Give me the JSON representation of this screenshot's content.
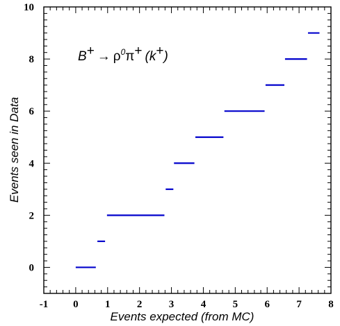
{
  "chart_data": {
    "type": "line",
    "xlabel": "Events expected (from MC)",
    "ylabel": "Events seen in Data",
    "xlim": [
      -1,
      8
    ],
    "ylim": [
      -1,
      10
    ],
    "x_ticks": [
      -1,
      0,
      1,
      2,
      3,
      4,
      5,
      6,
      7,
      8
    ],
    "y_ticks": [
      0,
      2,
      4,
      6,
      8,
      10
    ],
    "annotation": {
      "B": "B",
      "plus": "+",
      "arrow": "→",
      "rho": "ρ",
      "zero": "0",
      "pi": "π",
      "k": "(k",
      "close": ")"
    },
    "series_color": "#0000cc",
    "segments": [
      {
        "x_start": 0.0,
        "x_end": 0.63,
        "y": 0
      },
      {
        "x_start": 0.68,
        "x_end": 0.92,
        "y": 1
      },
      {
        "x_start": 0.98,
        "x_end": 2.78,
        "y": 2
      },
      {
        "x_start": 2.82,
        "x_end": 3.06,
        "y": 3
      },
      {
        "x_start": 3.08,
        "x_end": 3.72,
        "y": 4
      },
      {
        "x_start": 3.75,
        "x_end": 4.63,
        "y": 5
      },
      {
        "x_start": 4.66,
        "x_end": 5.92,
        "y": 6
      },
      {
        "x_start": 5.95,
        "x_end": 6.54,
        "y": 7
      },
      {
        "x_start": 6.56,
        "x_end": 7.25,
        "y": 8
      },
      {
        "x_start": 7.28,
        "x_end": 7.64,
        "y": 9
      }
    ]
  }
}
